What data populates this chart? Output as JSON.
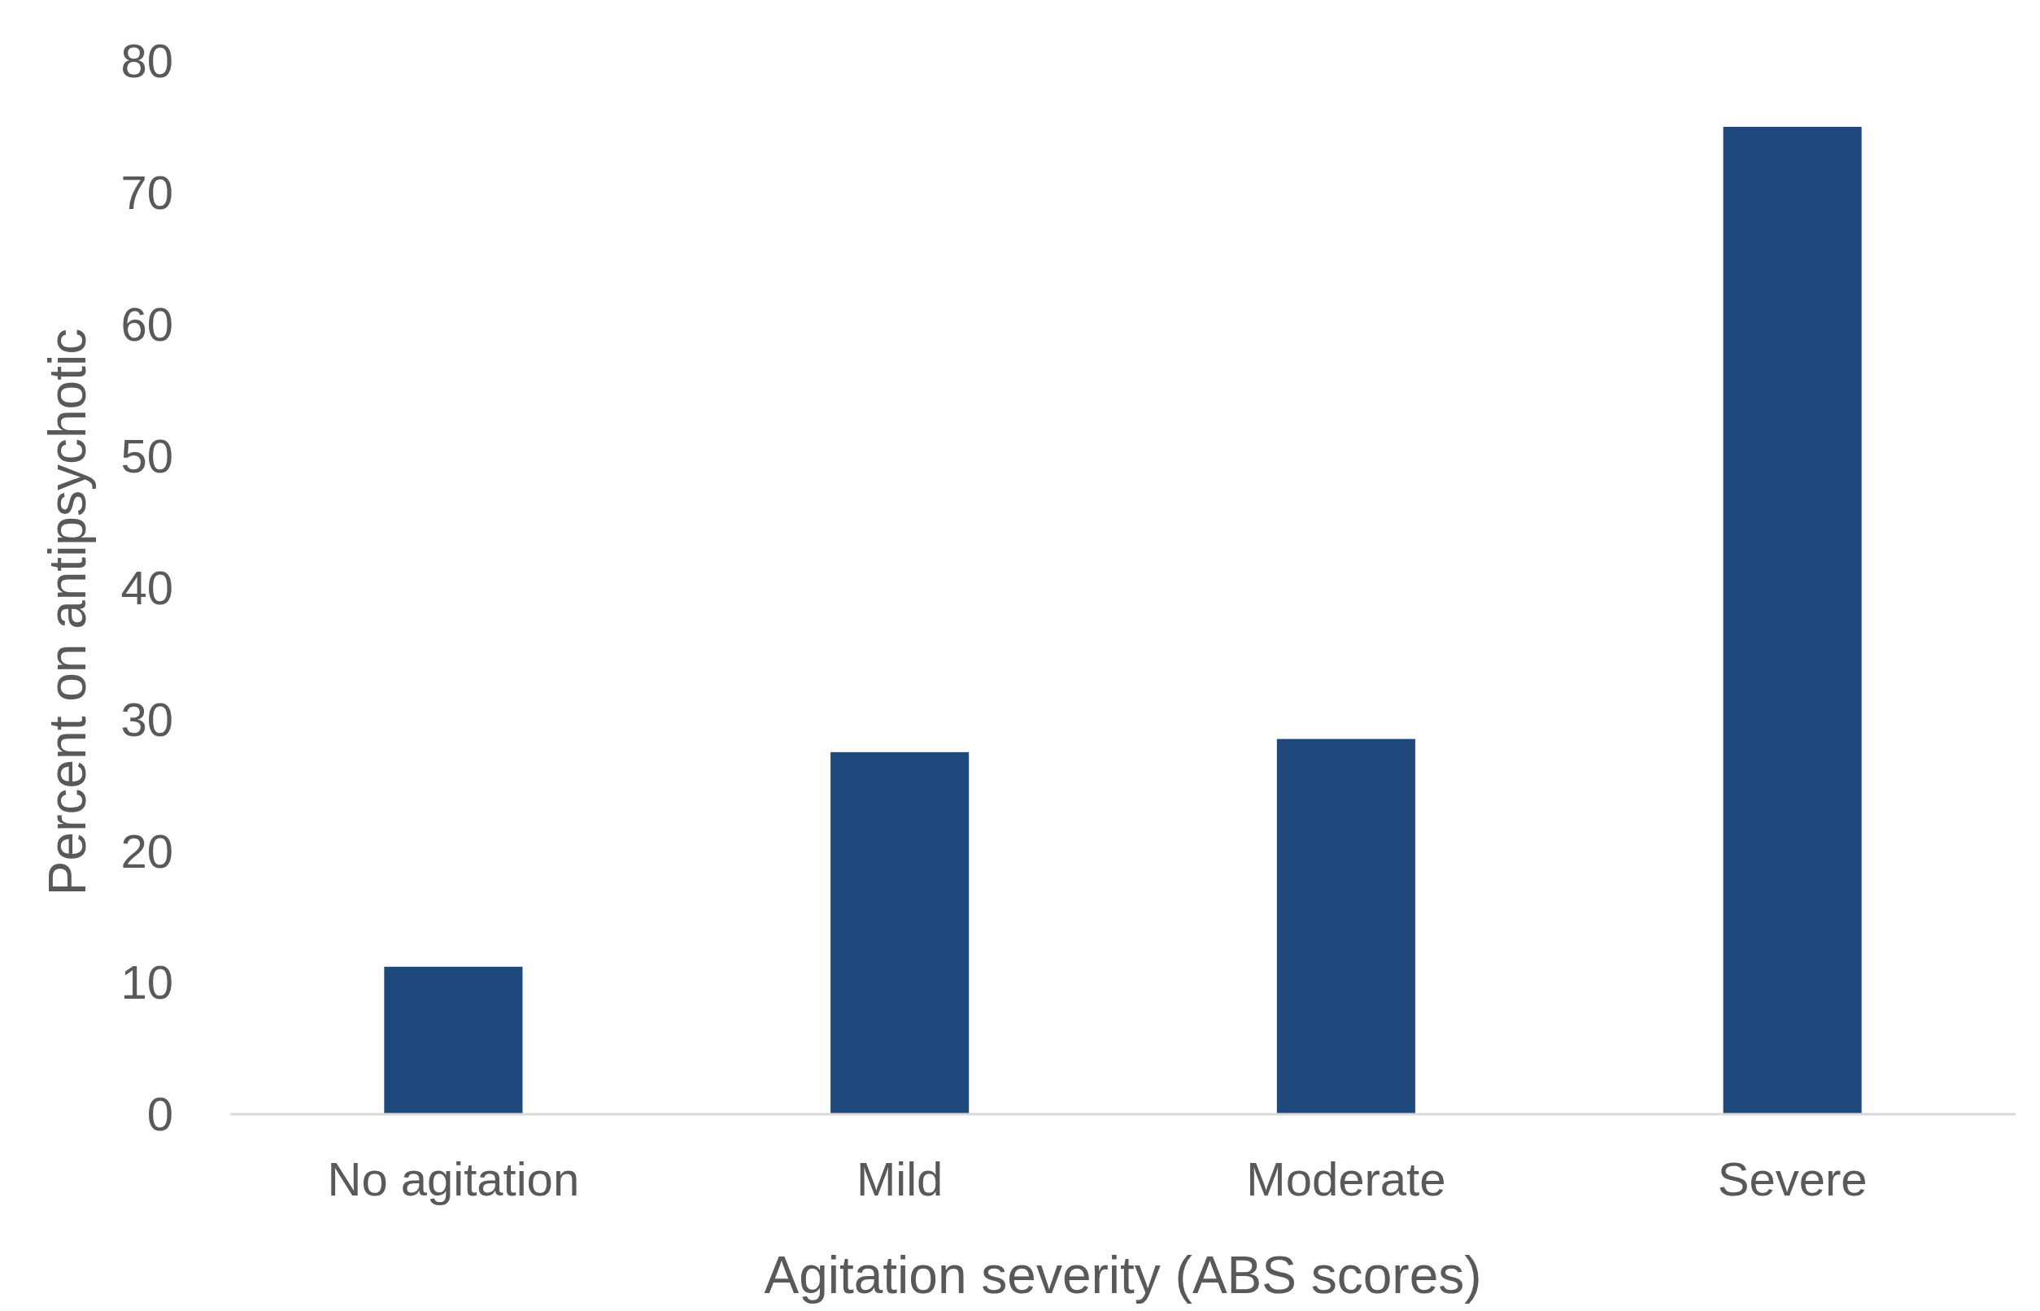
{
  "chart_data": {
    "type": "bar",
    "xlabel": "Agitation severity (ABS scores)",
    "ylabel": "Percent on antipsychotic",
    "categories": [
      "No agitation",
      "Mild",
      "Moderate",
      "Severe"
    ],
    "values": [
      11.2,
      27.5,
      28.5,
      75.0
    ],
    "color": "#1f497d",
    "ylim": [
      0,
      80
    ],
    "yticks": [
      0,
      10,
      20,
      30,
      40,
      50,
      60,
      70,
      80
    ],
    "grid": false
  }
}
